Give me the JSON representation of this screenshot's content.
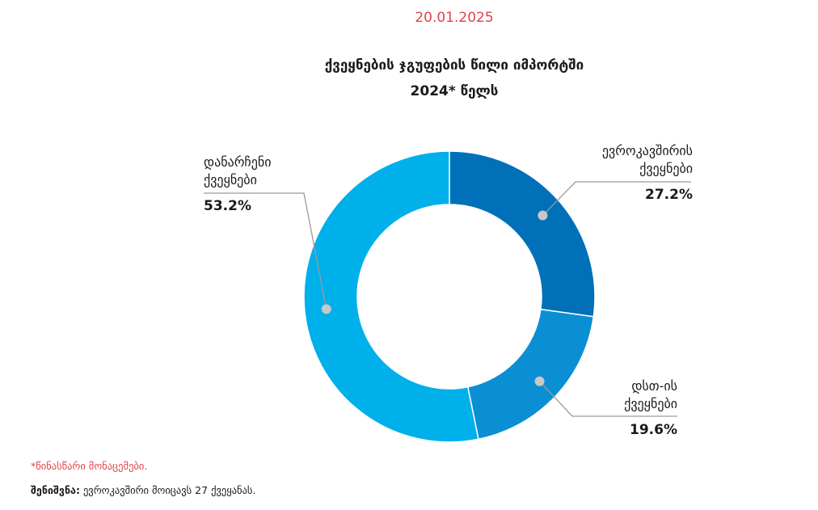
{
  "header": {
    "date": "20.01.2025",
    "title_line1": "ქვეყნების ჯგუფების წილი იმპორტში",
    "title_line2": "2024* წელს"
  },
  "chart_data": {
    "type": "pie",
    "donut": true,
    "title": "ქვეყნების ჯგუფების წილი იმპორტში 2024* წელს",
    "slices": [
      {
        "label_line1": "ევროკავშირის",
        "label_line2": "ქვეყნები",
        "value": 27.2,
        "display": "27.2%",
        "color": "#0070b8"
      },
      {
        "label_line1": "დსთ-ის",
        "label_line2": "ქვეყნები",
        "value": 19.6,
        "display": "19.6%",
        "color": "#0a8fd4"
      },
      {
        "label_line1": "დანარჩენი",
        "label_line2": "ქვეყნები",
        "value": 53.2,
        "display": "53.2%",
        "color": "#00b0ea"
      }
    ]
  },
  "footnotes": {
    "preliminary": "*წინასწარი მონაცემები.",
    "note_label": "შენიშვნა:",
    "note_text": " ევროკავშირი მოიცავს 27 ქვეყანას."
  }
}
